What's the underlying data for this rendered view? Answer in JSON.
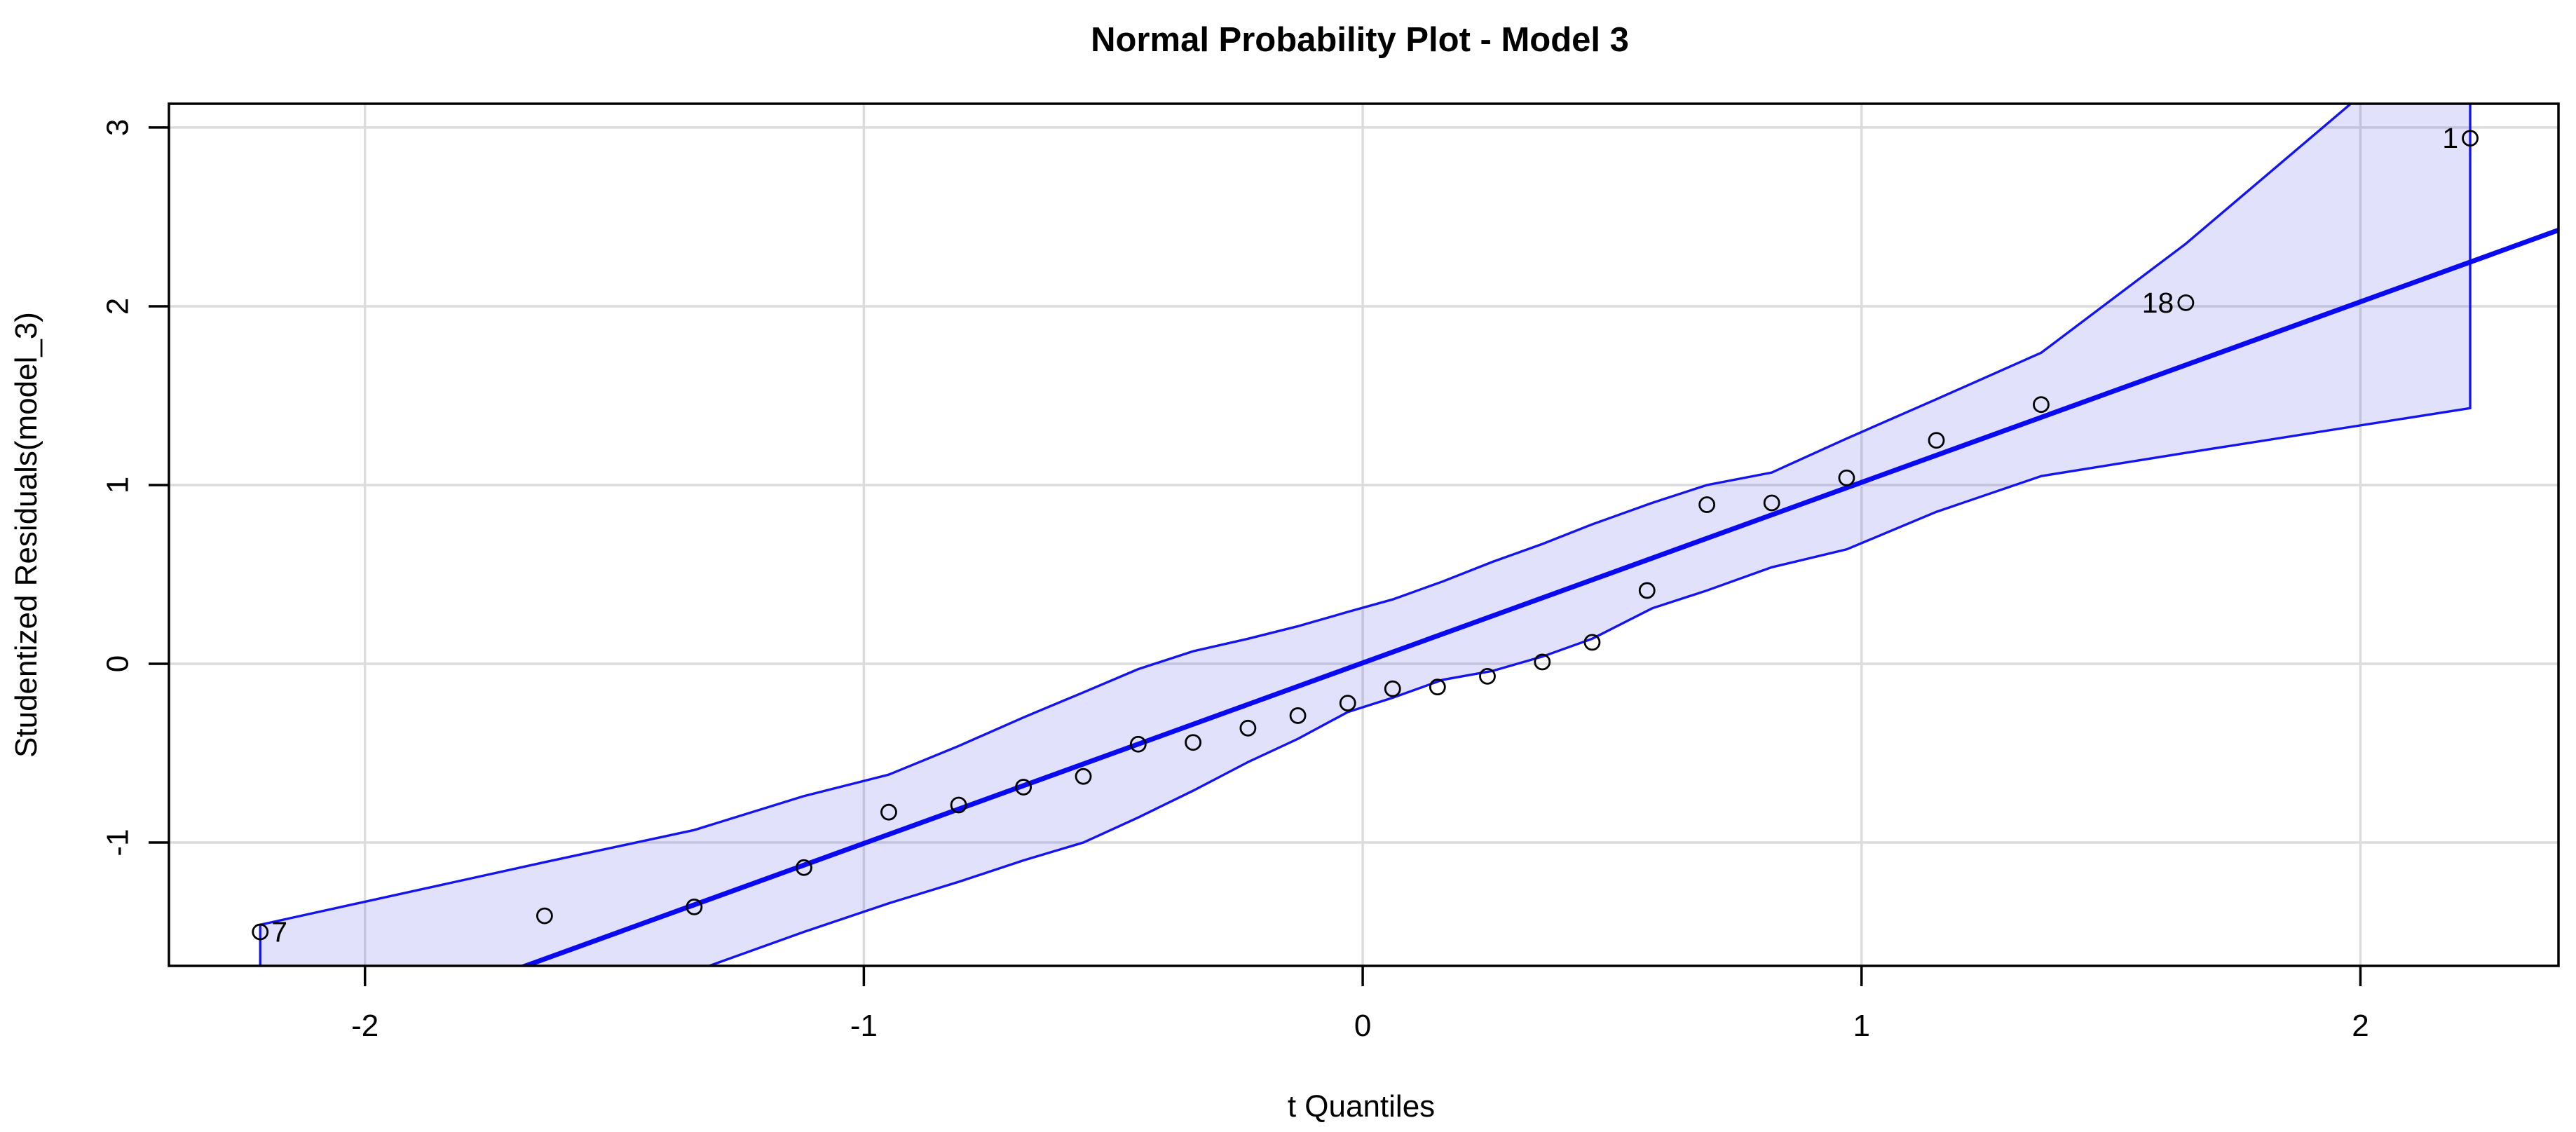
{
  "chart_data": {
    "type": "scatter",
    "title": "Normal Probability Plot - Model 3",
    "xlabel": "t Quantiles",
    "ylabel": "Studentized Residuals(model_3)",
    "xlim": [
      -2.393,
      2.397
    ],
    "ylim": [
      -1.69,
      3.133
    ],
    "x_ticks": [
      -2,
      -1,
      0,
      1,
      2
    ],
    "y_ticks": [
      -1,
      0,
      1,
      2,
      3
    ],
    "grid": true,
    "legend": "none",
    "reference_line": {
      "slope": 1.01,
      "intercept": 0.005
    },
    "points": [
      {
        "x": -2.21,
        "y": -1.5,
        "label": "7",
        "label_side": "right"
      },
      {
        "x": -1.64,
        "y": -1.41
      },
      {
        "x": -1.34,
        "y": -1.36
      },
      {
        "x": -1.12,
        "y": -1.14
      },
      {
        "x": -0.95,
        "y": -0.83
      },
      {
        "x": -0.81,
        "y": -0.79
      },
      {
        "x": -0.68,
        "y": -0.69
      },
      {
        "x": -0.56,
        "y": -0.63
      },
      {
        "x": -0.45,
        "y": -0.45
      },
      {
        "x": -0.34,
        "y": -0.44
      },
      {
        "x": -0.23,
        "y": -0.36
      },
      {
        "x": -0.13,
        "y": -0.29
      },
      {
        "x": -0.03,
        "y": -0.22
      },
      {
        "x": 0.06,
        "y": -0.14
      },
      {
        "x": 0.15,
        "y": -0.13
      },
      {
        "x": 0.25,
        "y": -0.07
      },
      {
        "x": 0.36,
        "y": 0.01
      },
      {
        "x": 0.46,
        "y": 0.12
      },
      {
        "x": 0.57,
        "y": 0.41
      },
      {
        "x": 0.69,
        "y": 0.89
      },
      {
        "x": 0.82,
        "y": 0.9
      },
      {
        "x": 0.97,
        "y": 1.04
      },
      {
        "x": 1.15,
        "y": 1.25
      },
      {
        "x": 1.36,
        "y": 1.45
      },
      {
        "x": 1.65,
        "y": 2.02,
        "label": "18",
        "label_side": "left"
      },
      {
        "x": 2.22,
        "y": 2.94,
        "label": "1",
        "label_side": "left"
      }
    ],
    "envelope": {
      "x": [
        -2.21,
        -1.64,
        -1.34,
        -1.12,
        -0.95,
        -0.81,
        -0.68,
        -0.56,
        -0.45,
        -0.34,
        -0.23,
        -0.13,
        -0.03,
        0.06,
        0.16,
        0.26,
        0.36,
        0.46,
        0.58,
        0.69,
        0.82,
        0.97,
        1.15,
        1.36,
        1.65,
        2.22
      ],
      "upper": [
        -1.46,
        -1.11,
        -0.93,
        -0.74,
        -0.62,
        -0.46,
        -0.3,
        -0.16,
        -0.03,
        0.07,
        0.14,
        0.21,
        0.29,
        0.36,
        0.46,
        0.57,
        0.67,
        0.78,
        0.9,
        1.0,
        1.07,
        1.26,
        1.48,
        1.74,
        2.35,
        3.7
      ],
      "lower": [
        -2.45,
        -1.95,
        -1.72,
        -1.5,
        -1.34,
        -1.22,
        -1.1,
        -1.0,
        -0.86,
        -0.71,
        -0.55,
        -0.42,
        -0.27,
        -0.19,
        -0.09,
        -0.04,
        0.04,
        0.14,
        0.31,
        0.41,
        0.54,
        0.64,
        0.85,
        1.05,
        1.18,
        1.43
      ]
    },
    "colors": {
      "line_blue": "#0a0af0",
      "band_fill": "rgba(40, 40, 225, 0.14)",
      "band_border": "#1414ee",
      "gridline": "#dcdcdc",
      "axis_black": "#000000",
      "point_stroke": "#000000",
      "text": "#000000",
      "background": "#ffffff"
    }
  }
}
